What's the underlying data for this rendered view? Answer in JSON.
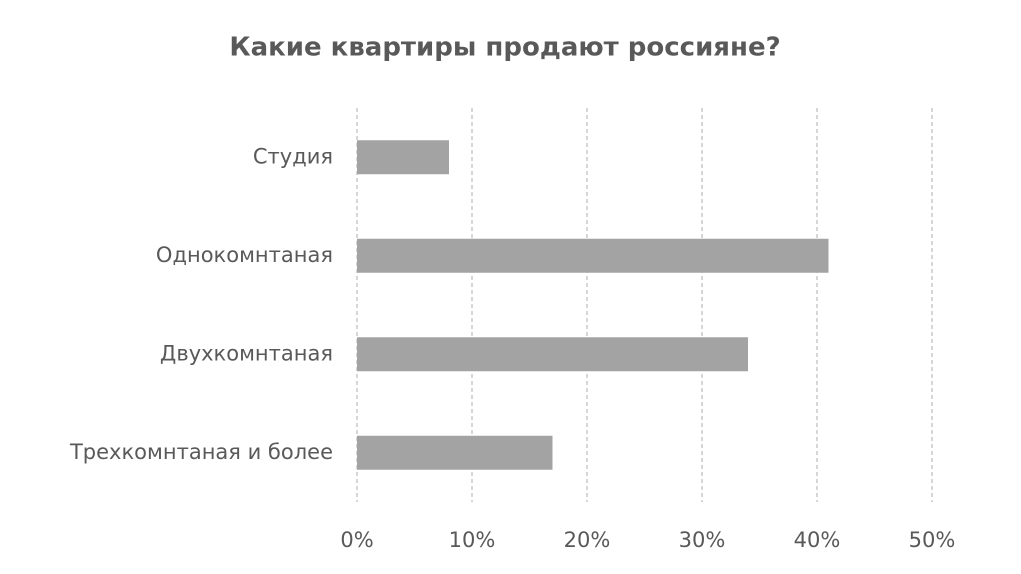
{
  "chart_data": {
    "type": "barh",
    "title": "Какие  квартиры продают россияне?",
    "categories": [
      "Студия",
      "Однокомнтаная",
      "Двухкомнтаная",
      "Трехкомнтаная и более"
    ],
    "values": [
      8,
      41,
      34,
      17
    ],
    "color": "#a3a3a3",
    "xlim": [
      0,
      50
    ],
    "xticks": [
      {
        "value": 0,
        "label": "0%"
      },
      {
        "value": 10,
        "label": "10%"
      },
      {
        "value": 20,
        "label": "20%"
      },
      {
        "value": 30,
        "label": "30%"
      },
      {
        "value": 40,
        "label": "40%"
      },
      {
        "value": 50,
        "label": "50%"
      }
    ],
    "grid": true
  }
}
